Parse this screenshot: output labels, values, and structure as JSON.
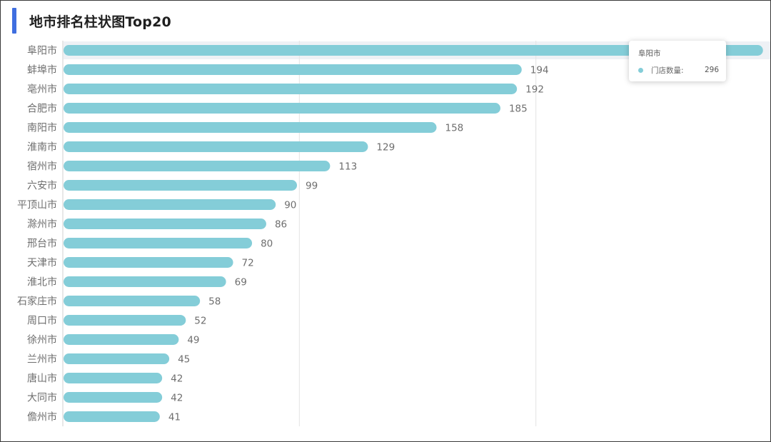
{
  "colors": {
    "bar": "#84cdd8",
    "accent": "#3f6ee0",
    "grid": "#e4e4e4",
    "axis": "#cfcfcf",
    "label": "#6e6e6e",
    "value": "#6e6e6e",
    "pointer": "#eef1f5"
  },
  "chart_data": {
    "type": "bar",
    "orientation": "horizontal",
    "title": "地市排名柱状图Top20",
    "xlabel": "",
    "ylabel": "",
    "xlim": [
      0,
      300
    ],
    "grid": true,
    "categories": [
      "阜阳市",
      "蚌埠市",
      "亳州市",
      "合肥市",
      "南阳市",
      "淮南市",
      "宿州市",
      "六安市",
      "平顶山市",
      "滁州市",
      "邢台市",
      "天津市",
      "淮北市",
      "石家庄市",
      "周口市",
      "徐州市",
      "兰州市",
      "唐山市",
      "大同市",
      "儋州市"
    ],
    "series": [
      {
        "name": "门店数量",
        "values": [
          296,
          194,
          192,
          185,
          158,
          129,
          113,
          99,
          90,
          86,
          80,
          72,
          69,
          58,
          52,
          49,
          45,
          42,
          42,
          41
        ]
      }
    ],
    "highlight_index": 0
  },
  "tooltip": {
    "title": "阜阳市",
    "series_label": "门店数量:",
    "value": "296"
  }
}
